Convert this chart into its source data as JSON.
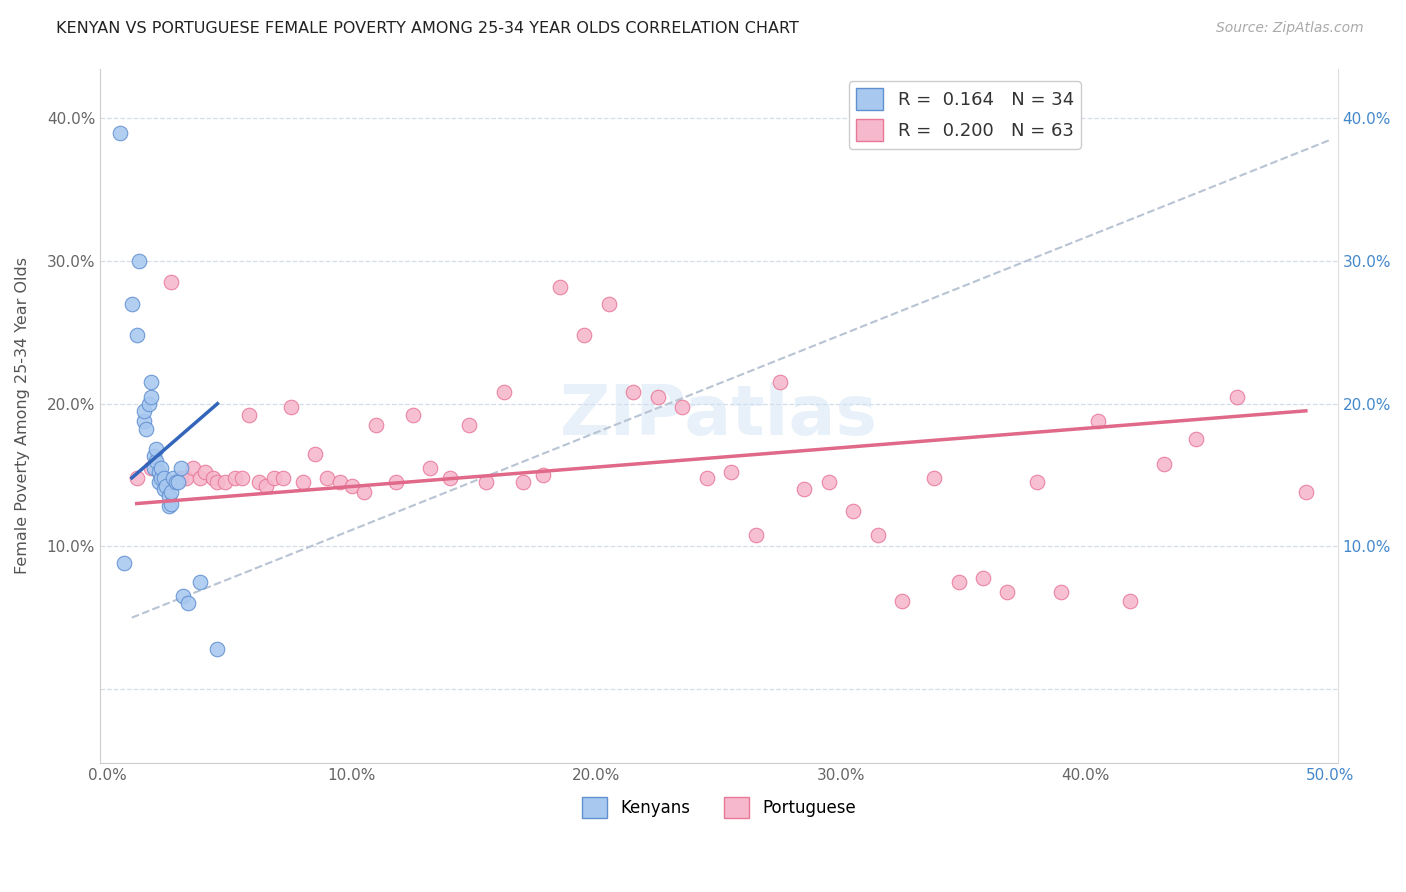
{
  "title": "KENYAN VS PORTUGUESE FEMALE POVERTY AMONG 25-34 YEAR OLDS CORRELATION CHART",
  "source": "Source: ZipAtlas.com",
  "ylabel": "Female Poverty Among 25-34 Year Olds",
  "xlim": [
    -0.003,
    0.503
  ],
  "ylim": [
    -0.052,
    0.435
  ],
  "xticks": [
    0.0,
    0.1,
    0.2,
    0.3,
    0.4,
    0.5
  ],
  "yticks": [
    0.0,
    0.1,
    0.2,
    0.3,
    0.4
  ],
  "background_color": "#ffffff",
  "grid_color": "#d5dde8",
  "kenyan_color": "#a8c8f0",
  "portuguese_color": "#f5b8cc",
  "kenyan_edge_color": "#6090d0",
  "portuguese_edge_color": "#e87898",
  "kenyan_line_color": "#3366bb",
  "portuguese_line_color": "#e06888",
  "dashed_line_color": "#b8c4d4",
  "R_kenyan": 0.164,
  "N_kenyan": 34,
  "R_portuguese": 0.2,
  "N_portuguese": 63,
  "kenyan_x": [
    0.005,
    0.007,
    0.01,
    0.012,
    0.013,
    0.015,
    0.015,
    0.016,
    0.017,
    0.018,
    0.018,
    0.019,
    0.019,
    0.02,
    0.02,
    0.021,
    0.021,
    0.022,
    0.022,
    0.023,
    0.023,
    0.024,
    0.025,
    0.025,
    0.026,
    0.026,
    0.027,
    0.028,
    0.029,
    0.03,
    0.031,
    0.033,
    0.038,
    0.045
  ],
  "kenyan_y": [
    0.39,
    0.088,
    0.27,
    0.248,
    0.3,
    0.188,
    0.195,
    0.182,
    0.2,
    0.205,
    0.215,
    0.155,
    0.163,
    0.16,
    0.168,
    0.145,
    0.152,
    0.148,
    0.155,
    0.14,
    0.148,
    0.142,
    0.135,
    0.128,
    0.13,
    0.138,
    0.148,
    0.145,
    0.145,
    0.155,
    0.065,
    0.06,
    0.075,
    0.028
  ],
  "portuguese_x": [
    0.012,
    0.018,
    0.022,
    0.026,
    0.03,
    0.032,
    0.035,
    0.038,
    0.04,
    0.043,
    0.045,
    0.048,
    0.052,
    0.055,
    0.058,
    0.062,
    0.065,
    0.068,
    0.072,
    0.075,
    0.08,
    0.085,
    0.09,
    0.095,
    0.1,
    0.105,
    0.11,
    0.118,
    0.125,
    0.132,
    0.14,
    0.148,
    0.155,
    0.162,
    0.17,
    0.178,
    0.185,
    0.195,
    0.205,
    0.215,
    0.225,
    0.235,
    0.245,
    0.255,
    0.265,
    0.275,
    0.285,
    0.295,
    0.305,
    0.315,
    0.325,
    0.338,
    0.348,
    0.358,
    0.368,
    0.38,
    0.39,
    0.405,
    0.418,
    0.432,
    0.445,
    0.462,
    0.49
  ],
  "portuguese_y": [
    0.148,
    0.155,
    0.148,
    0.285,
    0.148,
    0.148,
    0.155,
    0.148,
    0.152,
    0.148,
    0.145,
    0.145,
    0.148,
    0.148,
    0.192,
    0.145,
    0.142,
    0.148,
    0.148,
    0.198,
    0.145,
    0.165,
    0.148,
    0.145,
    0.142,
    0.138,
    0.185,
    0.145,
    0.192,
    0.155,
    0.148,
    0.185,
    0.145,
    0.208,
    0.145,
    0.15,
    0.282,
    0.248,
    0.27,
    0.208,
    0.205,
    0.198,
    0.148,
    0.152,
    0.108,
    0.215,
    0.14,
    0.145,
    0.125,
    0.108,
    0.062,
    0.148,
    0.075,
    0.078,
    0.068,
    0.145,
    0.068,
    0.188,
    0.062,
    0.158,
    0.175,
    0.205,
    0.138
  ],
  "kenyan_line_x": [
    0.01,
    0.045
  ],
  "kenyan_line_y": [
    0.148,
    0.2
  ],
  "portuguese_line_x": [
    0.012,
    0.49
  ],
  "portuguese_line_y": [
    0.13,
    0.195
  ],
  "dashed_line_x": [
    0.01,
    0.5
  ],
  "dashed_line_y": [
    0.05,
    0.385
  ]
}
